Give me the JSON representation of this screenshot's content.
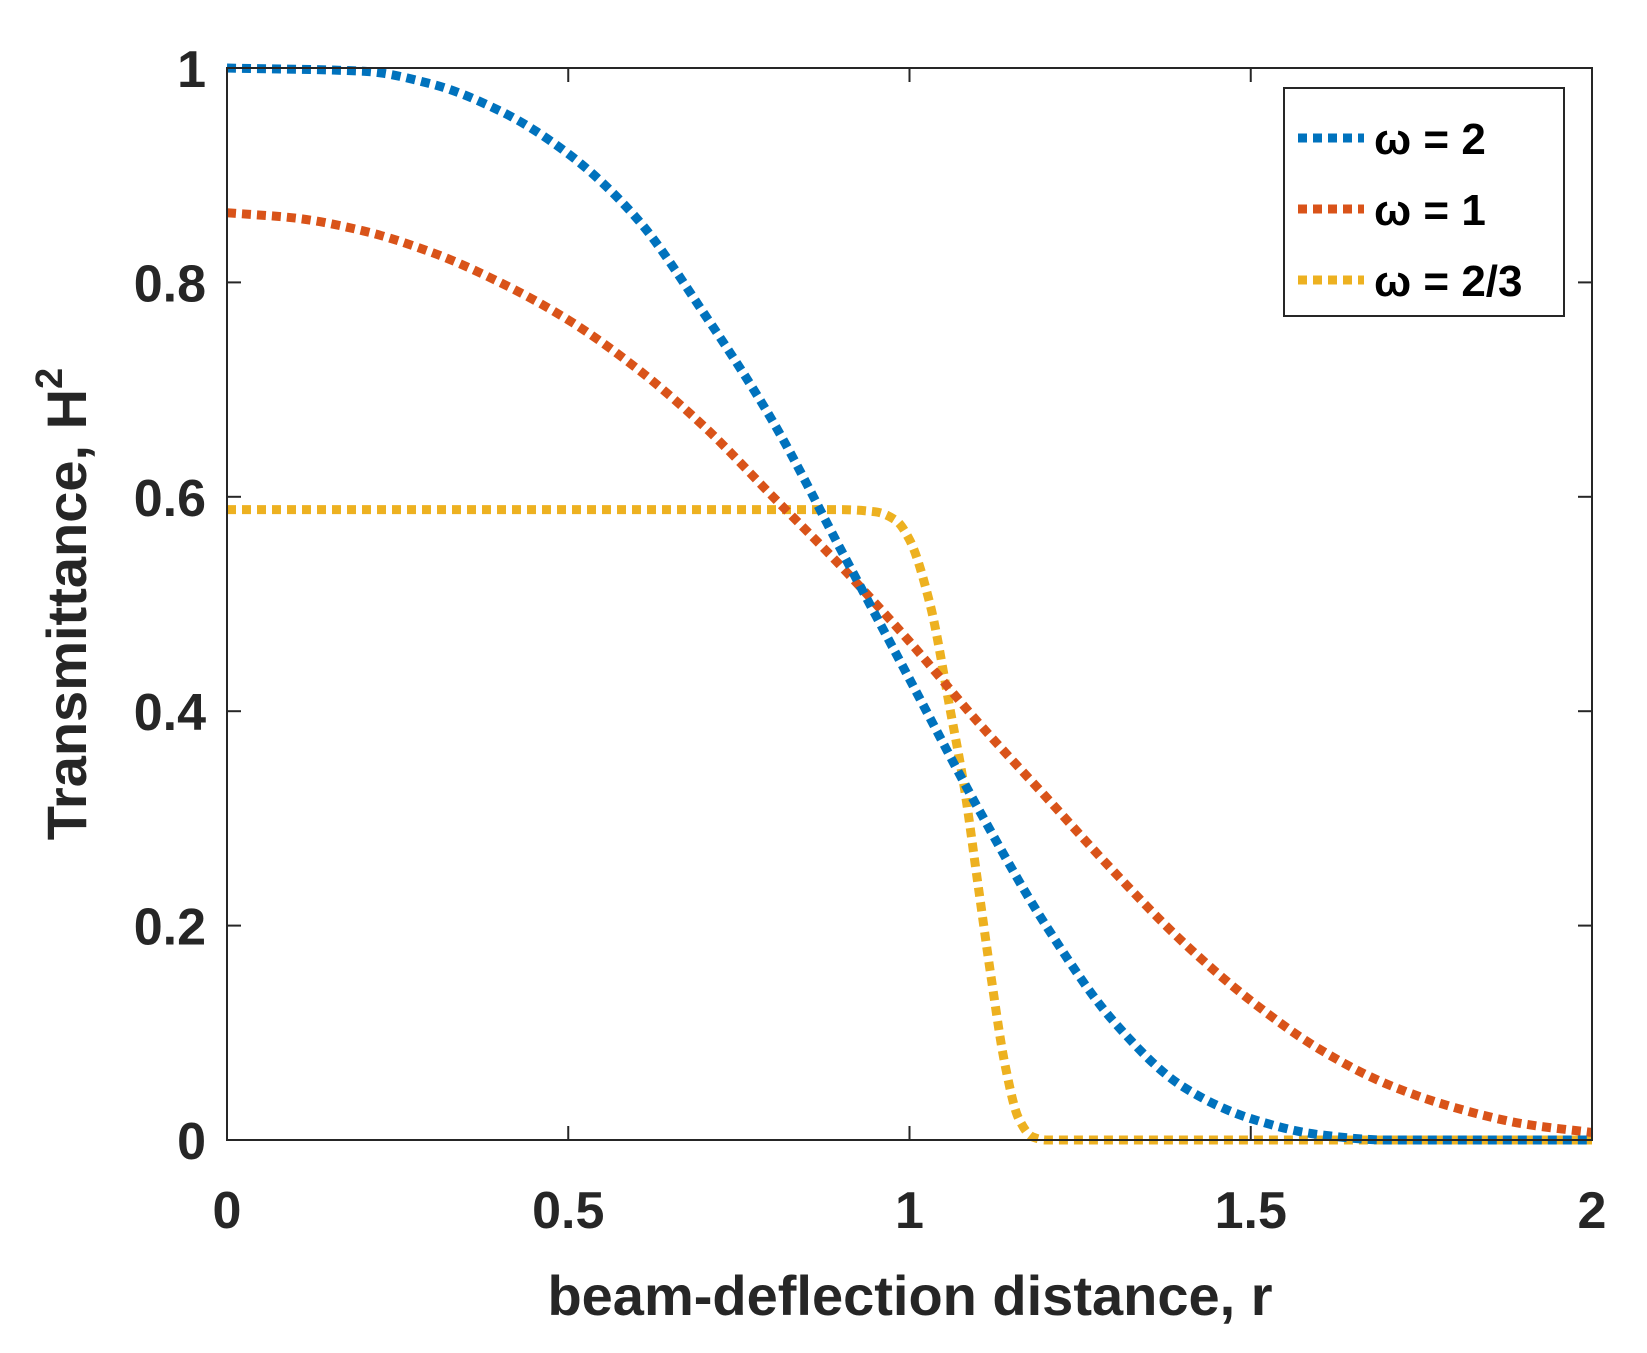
{
  "chart_data": {
    "type": "line",
    "xlabel": "beam-deflection distance, r",
    "ylabel": "Transmittance, H",
    "ylabel_superscript": "2",
    "xlim": [
      0,
      2
    ],
    "ylim": [
      0,
      1
    ],
    "xticks": [
      0,
      0.5,
      1,
      1.5,
      2
    ],
    "xtick_labels": [
      "0",
      "0.5",
      "1",
      "1.5",
      "2"
    ],
    "yticks": [
      0,
      0.2,
      0.4,
      0.6,
      0.8,
      1
    ],
    "ytick_labels": [
      "0",
      "0.2",
      "0.4",
      "0.6",
      "0.8",
      "1"
    ],
    "grid": false,
    "legend_position": "top-right",
    "line_style": "dotted",
    "series": [
      {
        "name": "ω = 2",
        "color": "#0072BD",
        "x": [
          0,
          0.2,
          0.3,
          0.4,
          0.5,
          0.6,
          0.7,
          0.8,
          0.9,
          1.0,
          1.1,
          1.2,
          1.3,
          1.4,
          1.5,
          1.6,
          1.7,
          2.0
        ],
        "y": [
          1.0,
          0.997,
          0.985,
          0.96,
          0.92,
          0.86,
          0.77,
          0.67,
          0.55,
          0.43,
          0.31,
          0.2,
          0.11,
          0.05,
          0.02,
          0.005,
          0.0,
          0.0
        ]
      },
      {
        "name": "ω = 1",
        "color": "#D95319",
        "x": [
          0,
          0.1,
          0.2,
          0.3,
          0.4,
          0.5,
          0.6,
          0.7,
          0.8,
          0.9,
          1.0,
          1.1,
          1.2,
          1.3,
          1.4,
          1.5,
          1.6,
          1.7,
          1.8,
          1.9,
          2.0
        ],
        "y": [
          0.865,
          0.86,
          0.848,
          0.828,
          0.8,
          0.765,
          0.72,
          0.665,
          0.6,
          0.535,
          0.465,
          0.39,
          0.32,
          0.25,
          0.185,
          0.13,
          0.085,
          0.052,
          0.03,
          0.015,
          0.007
        ]
      },
      {
        "name": "ω = 2/3",
        "color": "#EDB120",
        "x": [
          0,
          0.9,
          0.95,
          0.98,
          1.0,
          1.03,
          1.06,
          1.08,
          1.1,
          1.12,
          1.14,
          1.16,
          1.18,
          1.2,
          2.0
        ],
        "y": [
          0.588,
          0.588,
          0.586,
          0.578,
          0.56,
          0.5,
          0.4,
          0.33,
          0.24,
          0.15,
          0.07,
          0.02,
          0.003,
          0.0,
          0.0
        ]
      }
    ]
  }
}
